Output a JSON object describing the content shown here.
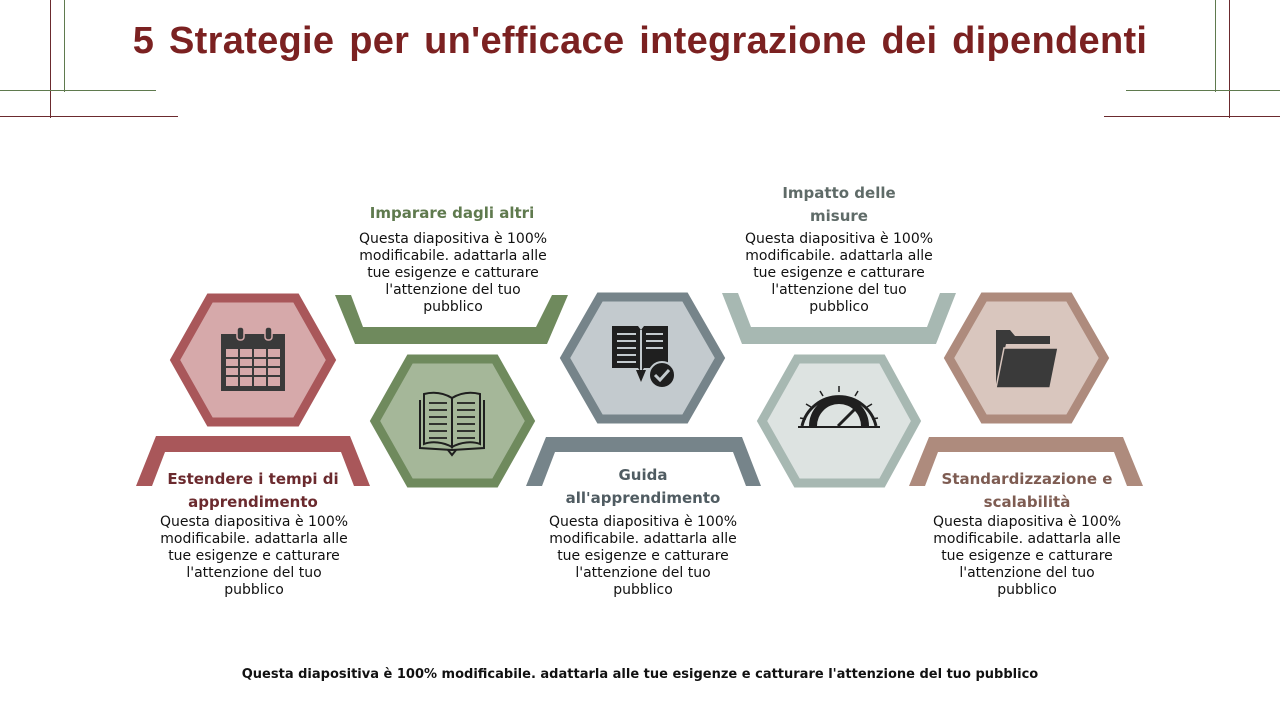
{
  "title": "5 Strategie per un'efficace integrazione dei dipendenti",
  "colors": {
    "title": "#7b2121",
    "red": "#a9575a",
    "red_fill": "#d6a9aa",
    "green": "#6f8a5d",
    "green_fill": "#a5b799",
    "slate": "#76848a",
    "slate_fill": "#c3cace",
    "sage": "#a7b8b2",
    "sage_fill": "#dde3e1",
    "taupe": "#ae8b7d",
    "taupe_fill": "#d9c6be"
  },
  "strategies": [
    {
      "heading": "Estendere i tempi di apprendimento",
      "heading_color": "#6b2a2e",
      "body": "Questa diapositiva è 100% modificabile. adattarla alle tue esigenze e catturare l'attenzione del tuo pubblico",
      "icon": "calendar-icon"
    },
    {
      "heading": "Imparare dagli altri",
      "heading_color": "#5f7a4e",
      "body": "Questa diapositiva è 100% modificabile. adattarla alle tue esigenze e catturare l'attenzione del tuo pubblico",
      "icon": "open-book-icon"
    },
    {
      "heading": "Guida all'apprendimento",
      "heading_color": "#505c62",
      "body": "Questa diapositiva è 100% modificabile. adattarla alle tue esigenze e catturare l'attenzione del tuo pubblico",
      "icon": "book-checkmark-icon"
    },
    {
      "heading": "Impatto delle misure",
      "heading_color": "#5f6b68",
      "body": "Questa diapositiva è 100% modificabile. adattarla alle tue esigenze e catturare l'attenzione del tuo pubblico",
      "icon": "speedometer-icon"
    },
    {
      "heading": "Standardizzazione e scalabilità",
      "heading_color": "#7e5c52",
      "body": "Questa diapositiva è 100% modificabile. adattarla alle tue esigenze e catturare l'attenzione del tuo pubblico",
      "icon": "folder-icon"
    }
  ],
  "footer": "Questa diapositiva è 100% modificabile. adattarla alle tue esigenze e catturare l'attenzione del tuo pubblico"
}
